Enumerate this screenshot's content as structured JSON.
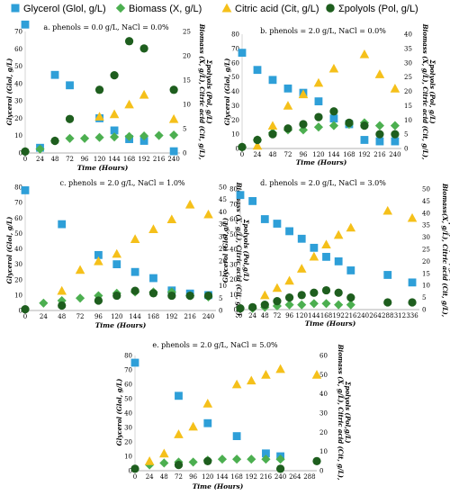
{
  "legend": [
    {
      "label": "Glycerol (Glol, g/L)",
      "shape": "square",
      "color": "#2e9fd8"
    },
    {
      "label": "Biomass (X, g/L)",
      "shape": "diamond",
      "color": "#4caf50"
    },
    {
      "label": "Citric acid (Cit, g/L)",
      "shape": "triangle",
      "color": "#f5c01a"
    },
    {
      "label": "Σpolyols (Pol, g/L)",
      "shape": "circle",
      "color": "#1e5e1e"
    }
  ],
  "chart_data": [
    {
      "type": "scatter",
      "title": "a. phenols = 0.0 g/L, NaCl = 0.0%",
      "xlabel": "Time (Hours)",
      "ylabel": "Glycerol (Glol, g/L)",
      "y2label_lines": [
        "Biomass (X, g/L), Citric acid (Cit, g/L),",
        "Σpolyols (Pol, g/L)"
      ],
      "x_ticks": [
        0,
        24,
        48,
        72,
        96,
        120,
        144,
        168,
        192,
        216,
        240
      ],
      "xlim": [
        0,
        250
      ],
      "ylim": [
        0,
        70
      ],
      "y_ticks": [
        0,
        10,
        20,
        30,
        40,
        50,
        60,
        70
      ],
      "y2lim": [
        0,
        25
      ],
      "y2_ticks": [
        0,
        5,
        10,
        15,
        20,
        25
      ],
      "series": [
        {
          "name": "Glycerol (Glol, g/L)",
          "axis": "left",
          "x": [
            0,
            24,
            48,
            72,
            120,
            144,
            168,
            192,
            240
          ],
          "y": [
            74,
            3,
            45,
            39,
            20,
            13,
            8,
            7,
            1
          ]
        },
        {
          "name": "Biomass (X, g/L)",
          "axis": "right",
          "x": [
            0,
            24,
            48,
            72,
            96,
            120,
            144,
            168,
            192,
            216,
            240
          ],
          "y": [
            0.3,
            0.8,
            2.5,
            3,
            3,
            3.2,
            3.3,
            3.4,
            3.5,
            3.6,
            3.7
          ]
        },
        {
          "name": "Citric acid (Cit, g/L)",
          "axis": "right",
          "x": [
            120,
            144,
            168,
            192,
            240
          ],
          "y": [
            7.5,
            8,
            10,
            12,
            7
          ]
        },
        {
          "name": "Σpolyols (Pol, g/L)",
          "axis": "right",
          "x": [
            0,
            48,
            72,
            120,
            144,
            168,
            192,
            240
          ],
          "y": [
            0.3,
            2.5,
            7,
            13,
            16,
            23,
            21.5,
            13
          ]
        }
      ]
    },
    {
      "type": "scatter",
      "title": "b. phenols = 2.0 g/L, NaCl = 0.0%",
      "xlabel": "Time (Hours)",
      "ylabel": "Glycerol (Glol, g/L)",
      "y2label_lines": [
        "Biomass (X, g/L), Citric acid (Cit, g/L),",
        "Σpolyols (Pol, g/L)"
      ],
      "x_ticks": [
        0,
        24,
        48,
        72,
        96,
        120,
        144,
        168,
        192,
        216,
        240
      ],
      "xlim": [
        0,
        250
      ],
      "ylim": [
        0,
        80
      ],
      "y_ticks": [
        0,
        10,
        20,
        30,
        40,
        50,
        60,
        70,
        80
      ],
      "y2lim": [
        0,
        40
      ],
      "y2_ticks": [
        0,
        5,
        10,
        15,
        20,
        25,
        30,
        35,
        40
      ],
      "series": [
        {
          "name": "Glycerol (Glol, g/L)",
          "axis": "left",
          "x": [
            0,
            24,
            48,
            72,
            96,
            120,
            144,
            168,
            192,
            216,
            240
          ],
          "y": [
            67,
            55,
            48,
            42,
            39,
            33,
            21,
            17,
            6,
            5,
            5
          ]
        },
        {
          "name": "Biomass (X, g/L)",
          "axis": "right",
          "x": [
            0,
            24,
            48,
            72,
            96,
            120,
            144,
            168,
            192,
            216,
            240
          ],
          "y": [
            0.5,
            3,
            5.5,
            6.5,
            6.5,
            7.5,
            8,
            8.5,
            9,
            8,
            8
          ]
        },
        {
          "name": "Citric acid (Cit, g/L)",
          "axis": "right",
          "x": [
            24,
            48,
            72,
            96,
            120,
            144,
            192,
            216,
            240
          ],
          "y": [
            1,
            8,
            15,
            19,
            23,
            28,
            33,
            26,
            21
          ]
        },
        {
          "name": "Σpolyols (Pol, g/L)",
          "axis": "right",
          "x": [
            0,
            24,
            48,
            72,
            96,
            120,
            144,
            168,
            192,
            216,
            240
          ],
          "y": [
            0.5,
            3,
            5,
            7,
            8.5,
            11,
            13,
            9,
            8,
            5,
            5
          ]
        }
      ]
    },
    {
      "type": "scatter",
      "title": "c. phenols = 2.0 g/L, NaCl = 1.0%",
      "xlabel": "Time (Hours)",
      "ylabel": "Glycerol (Glol, g/L)",
      "y2label_lines": [
        "Biomass (X, g/L), Citric acid (Cit, g/L),",
        "Σpolyols (Pol,g/L)"
      ],
      "x_ticks": [
        0,
        24,
        48,
        72,
        96,
        120,
        144,
        168,
        192,
        216,
        240
      ],
      "xlim": [
        0,
        250
      ],
      "ylim": [
        0,
        80
      ],
      "y_ticks": [
        0,
        10,
        20,
        30,
        40,
        50,
        60,
        70,
        80
      ],
      "y2lim": [
        0,
        50
      ],
      "y2_ticks": [
        0,
        5,
        10,
        15,
        20,
        25,
        30,
        35,
        40,
        45,
        50
      ],
      "series": [
        {
          "name": "Glycerol (Glol, g/L)",
          "axis": "left",
          "x": [
            0,
            48,
            96,
            120,
            144,
            168,
            192,
            216,
            240
          ],
          "y": [
            78,
            56,
            36,
            30,
            25,
            21,
            13,
            11,
            10
          ]
        },
        {
          "name": "Biomass (X, g/L)",
          "axis": "right",
          "x": [
            24,
            48,
            72,
            96,
            120,
            144,
            168,
            192,
            216,
            240
          ],
          "y": [
            3,
            4,
            5,
            6,
            7,
            7.5,
            7.5,
            7.5,
            6,
            5.5
          ]
        },
        {
          "name": "Citric acid (Cit, g/L)",
          "axis": "right",
          "x": [
            48,
            72,
            96,
            120,
            144,
            168,
            192,
            216,
            240
          ],
          "y": [
            8,
            16.5,
            20,
            23,
            29,
            33,
            37,
            43,
            39
          ]
        },
        {
          "name": "Σpolyols (Pol, g/L)",
          "axis": "right",
          "x": [
            0,
            48,
            96,
            120,
            144,
            168,
            192,
            216,
            240
          ],
          "y": [
            0.5,
            2,
            4,
            6,
            8,
            7,
            6,
            6,
            6
          ]
        }
      ]
    },
    {
      "type": "scatter",
      "title": "d. phenols = 2.0 g/L, NaCl = 3.0%",
      "xlabel": "Time (Hours)",
      "ylabel": "Glycerol (Glol,g/L)",
      "y2label_lines": [
        "Biomass(X, g/L), Citric acid (Cit, g/L),",
        "Σpolyols (Pol, g/L)"
      ],
      "x_ticks": [
        0,
        24,
        48,
        72,
        96,
        120,
        144,
        168,
        192,
        216,
        240,
        264,
        288,
        312,
        336
      ],
      "xlim": [
        0,
        350
      ],
      "ylim": [
        0,
        80
      ],
      "y_ticks": [
        0,
        10,
        20,
        30,
        40,
        50,
        60,
        70,
        80
      ],
      "y2lim": [
        0,
        50
      ],
      "y2_ticks": [
        0,
        5,
        10,
        15,
        20,
        25,
        30,
        35,
        40,
        45,
        50
      ],
      "series": [
        {
          "name": "Glycerol (Glol, g/L)",
          "axis": "left",
          "x": [
            0,
            24,
            48,
            72,
            96,
            120,
            144,
            168,
            192,
            216,
            288,
            336
          ],
          "y": [
            76,
            72,
            60,
            57,
            52,
            47,
            41,
            35,
            32,
            26,
            23,
            18
          ]
        },
        {
          "name": "Biomass (X, g/L)",
          "axis": "right",
          "x": [
            24,
            48,
            72,
            96,
            120,
            144,
            168,
            192,
            216
          ],
          "y": [
            0.5,
            1,
            1.5,
            2,
            2,
            2.5,
            2.5,
            2,
            2
          ]
        },
        {
          "name": "Citric acid (Cit, g/L)",
          "axis": "right",
          "x": [
            48,
            72,
            96,
            120,
            144,
            168,
            192,
            216,
            288,
            336
          ],
          "y": [
            6,
            9,
            12,
            17,
            22,
            27,
            31,
            34,
            41,
            38
          ]
        },
        {
          "name": "Σpolyols (Pol, g/L)",
          "axis": "right",
          "x": [
            0,
            24,
            48,
            72,
            96,
            120,
            144,
            168,
            192,
            216,
            288,
            336
          ],
          "y": [
            0.5,
            1,
            2,
            3.5,
            5,
            6,
            7,
            8,
            7,
            5,
            3,
            3
          ]
        }
      ]
    },
    {
      "type": "scatter",
      "title": "e. phenols = 2.0 g/L, NaCl = 5.0%",
      "xlabel": "Time (Hours)",
      "ylabel": "Glycerol (Glol, g/L)",
      "y2label_lines": [
        "Biomass (X, g/L), Citric acid (Cit, g/L),",
        "Σpolyols (Pol,g/L)"
      ],
      "x_ticks": [
        0,
        24,
        48,
        72,
        96,
        120,
        144,
        168,
        192,
        216,
        240,
        264,
        288
      ],
      "xlim": [
        0,
        300
      ],
      "ylim": [
        0,
        80
      ],
      "y_ticks": [
        0,
        10,
        20,
        30,
        40,
        50,
        60,
        70,
        80
      ],
      "y2lim": [
        0,
        60
      ],
      "y2_ticks": [
        0,
        10,
        20,
        30,
        40,
        50,
        60
      ],
      "series": [
        {
          "name": "Glycerol (Glol, g/L)",
          "axis": "left",
          "x": [
            0,
            72,
            120,
            168,
            216,
            240
          ],
          "y": [
            75,
            52,
            33,
            24,
            12,
            10
          ]
        },
        {
          "name": "Biomass (X, g/L)",
          "axis": "right",
          "x": [
            24,
            48,
            72,
            96,
            120,
            144,
            168,
            192,
            216,
            240
          ],
          "y": [
            3,
            4,
            4.5,
            4.5,
            5.5,
            6,
            6,
            6,
            6,
            6
          ]
        },
        {
          "name": "Citric acid (Cit, g/L)",
          "axis": "right",
          "x": [
            24,
            48,
            72,
            96,
            120,
            168,
            192,
            216,
            240,
            300
          ],
          "y": [
            5,
            9,
            19,
            23,
            35,
            45,
            47,
            50,
            53,
            50
          ]
        },
        {
          "name": "Σpolyols (Pol, g/L)",
          "axis": "right",
          "x": [
            0,
            72,
            120,
            240,
            300
          ],
          "y": [
            1,
            3,
            5,
            1,
            5
          ]
        }
      ]
    }
  ]
}
